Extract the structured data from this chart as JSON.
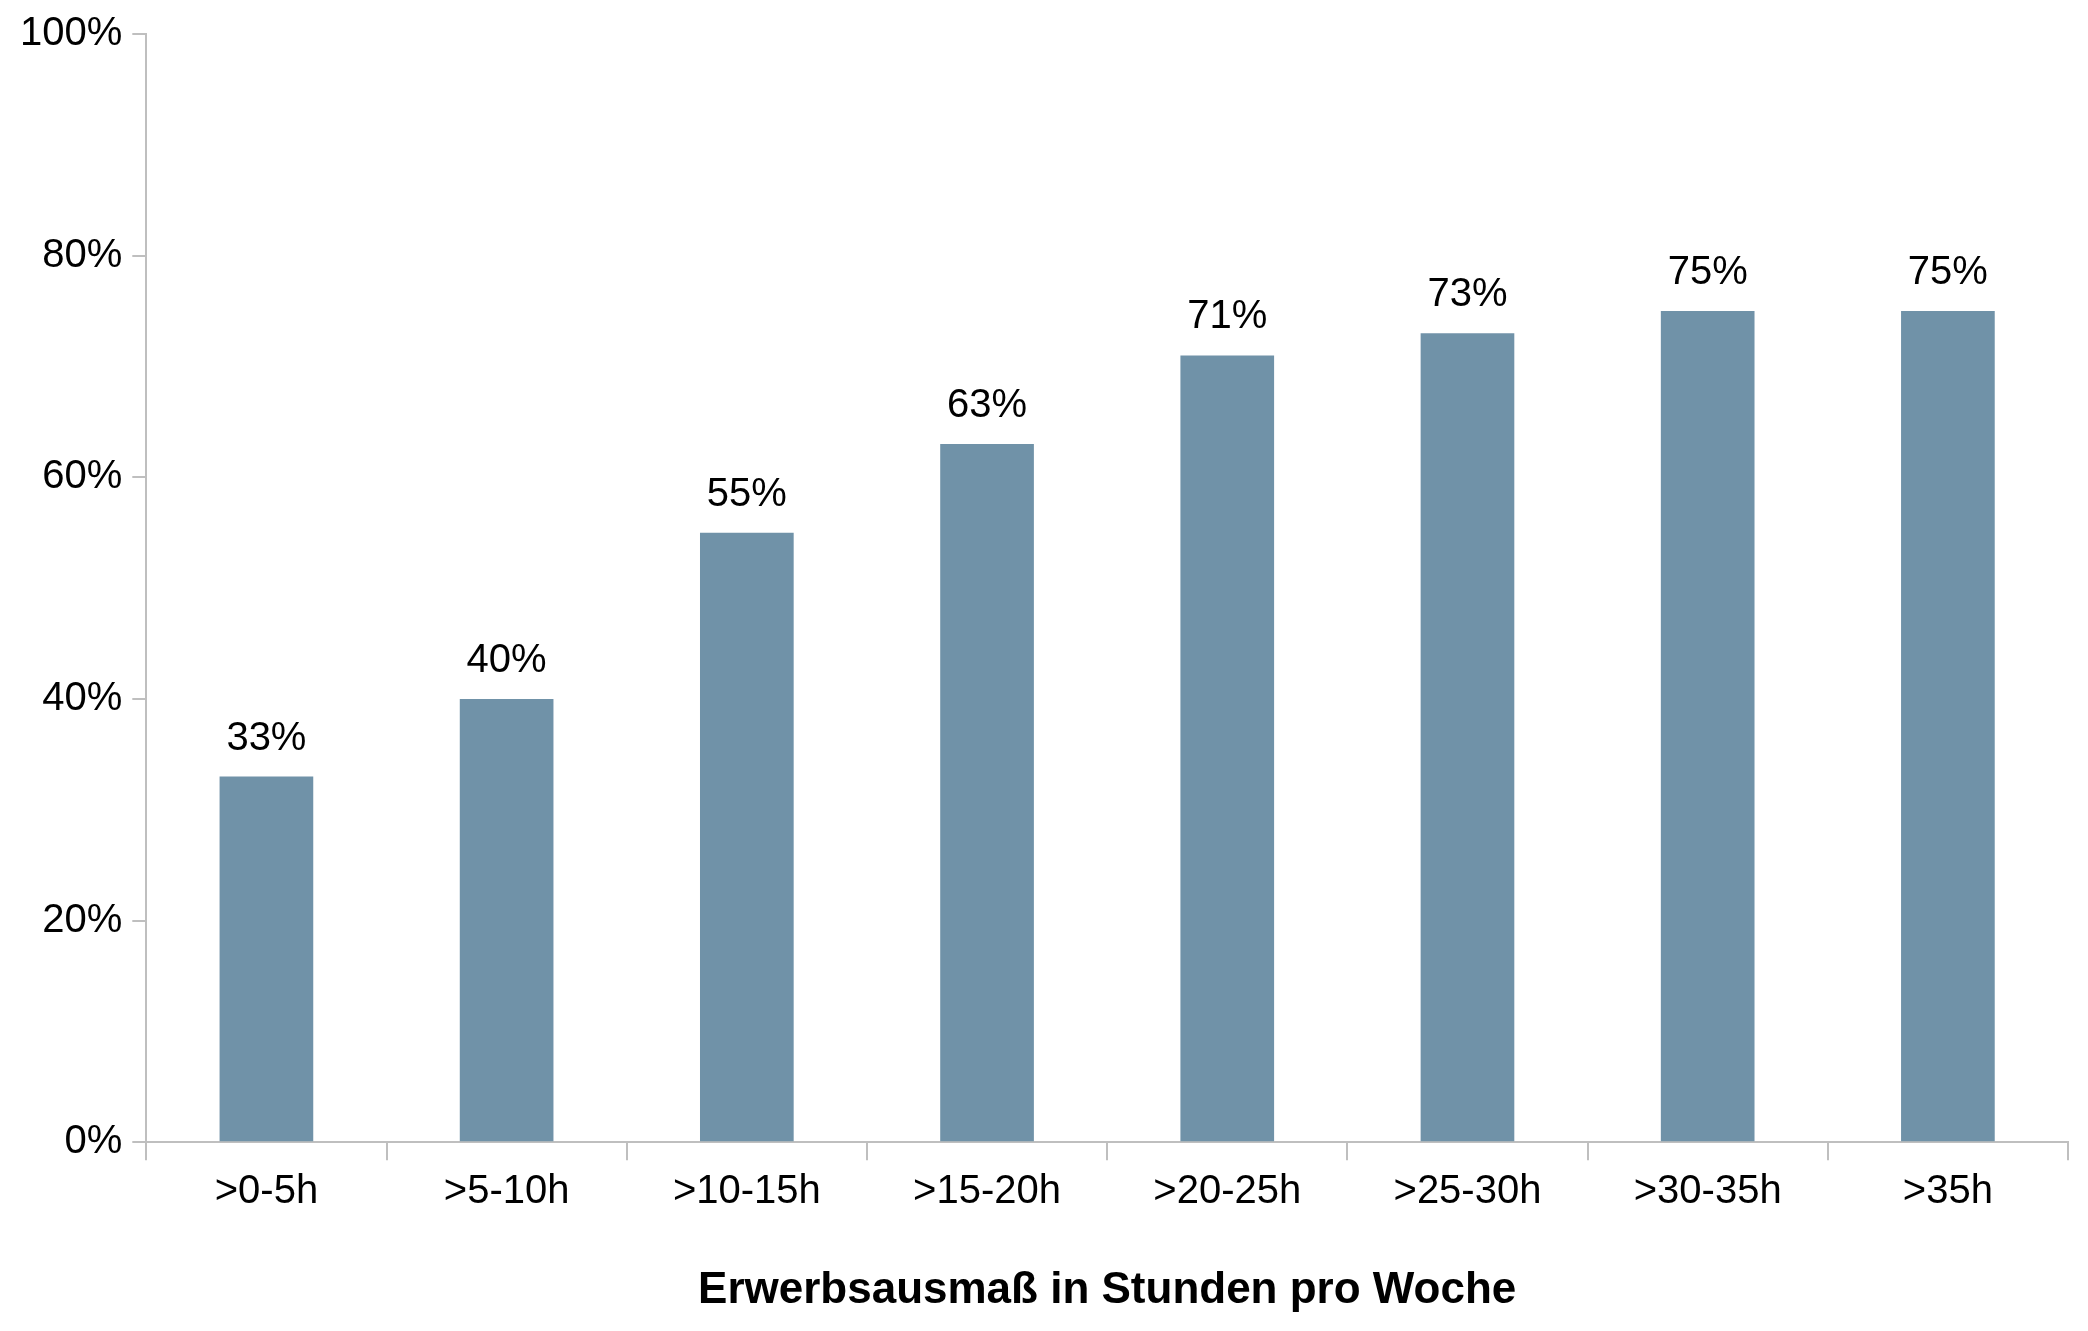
{
  "chart_data": {
    "type": "bar",
    "xlabel": "Erwerbsausmaß in Stunden pro Woche",
    "categories": [
      ">0-5h",
      ">5-10h",
      ">10-15h",
      ">15-20h",
      ">20-25h",
      ">25-30h",
      ">30-35h",
      ">35h"
    ],
    "values": [
      33,
      40,
      55,
      63,
      71,
      73,
      75,
      75
    ],
    "value_labels": [
      "33%",
      "40%",
      "55%",
      "63%",
      "71%",
      "73%",
      "75%",
      "75%"
    ],
    "color": "#7092a8",
    "ylim": [
      0,
      100
    ],
    "yticks": [
      {
        "value": 0,
        "label": "0%"
      },
      {
        "value": 20,
        "label": "20%"
      },
      {
        "value": 40,
        "label": "40%"
      },
      {
        "value": 60,
        "label": "60%"
      },
      {
        "value": 80,
        "label": "80%"
      },
      {
        "value": 100,
        "label": "100%"
      }
    ],
    "grid": false,
    "legend": false
  }
}
